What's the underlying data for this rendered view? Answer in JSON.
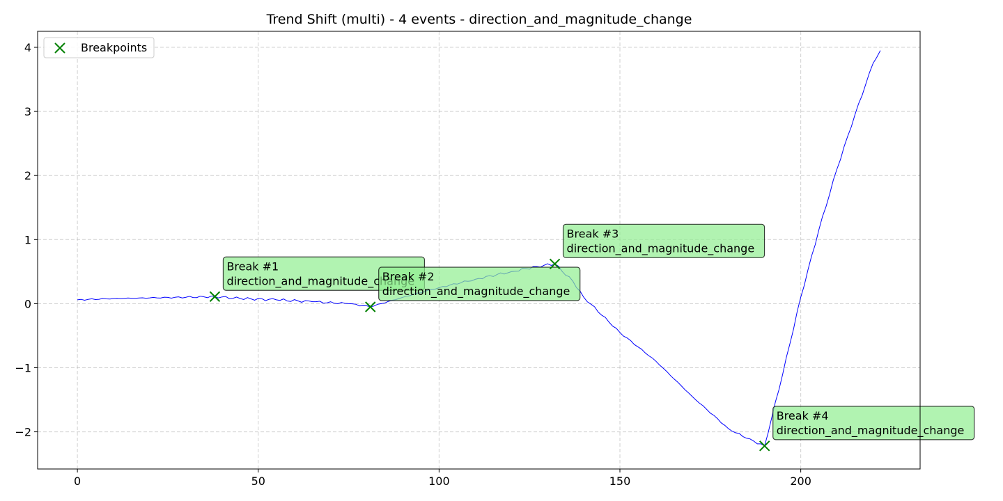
{
  "chart_data": {
    "type": "line",
    "title": "Trend Shift (multi) - 4 events - direction_and_magnitude_change",
    "xlabel": "",
    "ylabel": "",
    "xlim": [
      -11,
      233
    ],
    "ylim": [
      -2.58,
      4.25
    ],
    "xticks": [
      0,
      50,
      100,
      150,
      200
    ],
    "yticks": [
      -2,
      -1,
      0,
      1,
      2,
      3,
      4
    ],
    "grid": true,
    "legend": {
      "placement": "top-left",
      "entries": [
        "Breakpoints"
      ]
    },
    "series": [
      {
        "color": "#0000ff",
        "anchors_x": [
          0,
          10,
          20,
          30,
          38,
          45,
          55,
          65,
          75,
          81,
          90,
          100,
          110,
          120,
          127,
          132,
          137,
          140,
          150,
          160,
          170,
          180,
          185,
          190,
          195,
          200,
          205,
          210,
          215,
          220,
          222
        ],
        "anchors_y": [
          0.06,
          0.08,
          0.09,
          0.1,
          0.11,
          0.08,
          0.06,
          0.03,
          0.0,
          -0.05,
          0.1,
          0.25,
          0.38,
          0.5,
          0.58,
          0.62,
          0.35,
          0.1,
          -0.45,
          -0.9,
          -1.45,
          -1.95,
          -2.1,
          -2.22,
          -1.1,
          0.1,
          1.15,
          2.1,
          2.95,
          3.75,
          3.95
        ]
      }
    ],
    "breakpoints": {
      "name": "Breakpoints",
      "color": "#008000",
      "points": [
        {
          "x": 38,
          "y": 0.11,
          "label": "Break #1",
          "detail": "direction_and_magnitude_change"
        },
        {
          "x": 81,
          "y": -0.05,
          "label": "Break #2",
          "detail": "direction_and_magnitude_change"
        },
        {
          "x": 132,
          "y": 0.62,
          "label": "Break #3",
          "detail": "direction_and_magnitude_change"
        },
        {
          "x": 190,
          "y": -2.22,
          "label": "Break #4",
          "detail": "direction_and_magnitude_change"
        }
      ]
    },
    "annotation_style": {
      "fill": "#90ee90",
      "edge": "#000000"
    }
  }
}
